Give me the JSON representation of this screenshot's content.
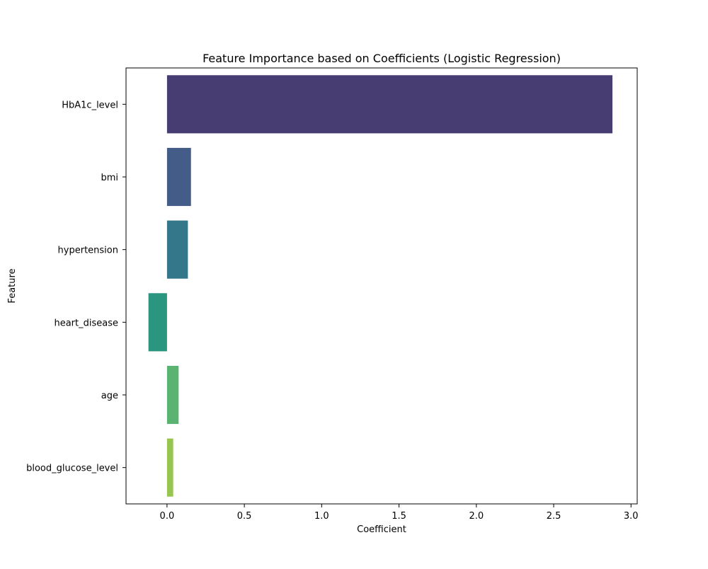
{
  "chart_data": {
    "type": "bar",
    "orientation": "horizontal",
    "title": "Feature Importance based on Coefficients (Logistic Regression)",
    "xlabel": "Coefficient",
    "ylabel": "Feature",
    "categories": [
      "HbA1c_level",
      "bmi",
      "hypertension",
      "heart_disease",
      "age",
      "blood_glucose_level"
    ],
    "values": [
      2.88,
      0.155,
      0.135,
      -0.12,
      0.075,
      0.04
    ],
    "colors": [
      "#483d73",
      "#435d88",
      "#35778a",
      "#2a9680",
      "#5ab370",
      "#98c550"
    ],
    "xlim": [
      -0.265,
      3.04
    ],
    "xticks": [
      0.0,
      0.5,
      1.0,
      1.5,
      2.0,
      2.5,
      3.0
    ],
    "xtick_labels": [
      "0.0",
      "0.5",
      "1.0",
      "1.5",
      "2.0",
      "2.5",
      "3.0"
    ],
    "grid": false,
    "legend": "none"
  }
}
